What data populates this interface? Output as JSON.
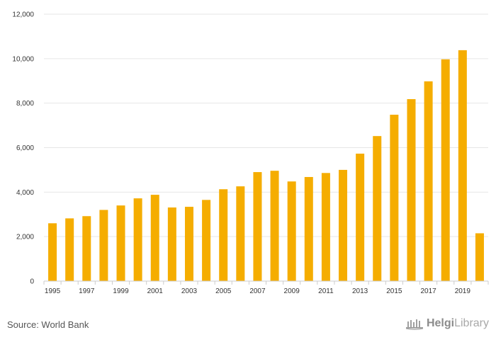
{
  "chart_data": {
    "type": "bar",
    "categories": [
      "1995",
      "1996",
      "1997",
      "1998",
      "1999",
      "2000",
      "2001",
      "2002",
      "2003",
      "2004",
      "2005",
      "2006",
      "2007",
      "2008",
      "2009",
      "2010",
      "2011",
      "2012",
      "2013",
      "2014",
      "2015",
      "2016",
      "2017",
      "2018",
      "2019",
      "2020"
    ],
    "x_tick_labels": [
      "1995",
      "1997",
      "1999",
      "2001",
      "2003",
      "2005",
      "2007",
      "2009",
      "2011",
      "2013",
      "2015",
      "2017",
      "2019"
    ],
    "values": [
      2600,
      2820,
      2920,
      3200,
      3400,
      3720,
      3880,
      3310,
      3340,
      3650,
      4130,
      4260,
      4900,
      4960,
      4480,
      4680,
      4860,
      5000,
      5730,
      6520,
      7480,
      8180,
      8980,
      9970,
      10380,
      2150
    ],
    "y_ticks": [
      0,
      2000,
      4000,
      6000,
      8000,
      10000,
      12000
    ],
    "y_tick_labels": [
      "0",
      "2,000",
      "4,000",
      "6,000",
      "8,000",
      "10,000",
      "12,000"
    ],
    "ylim": [
      0,
      12000
    ],
    "grid": true,
    "bar_color": "#F5AD00",
    "title": "",
    "xlabel": "",
    "ylabel": ""
  },
  "footer": {
    "source": "Source: World Bank",
    "logo_bold": "Helgi",
    "logo_light": "Library"
  }
}
